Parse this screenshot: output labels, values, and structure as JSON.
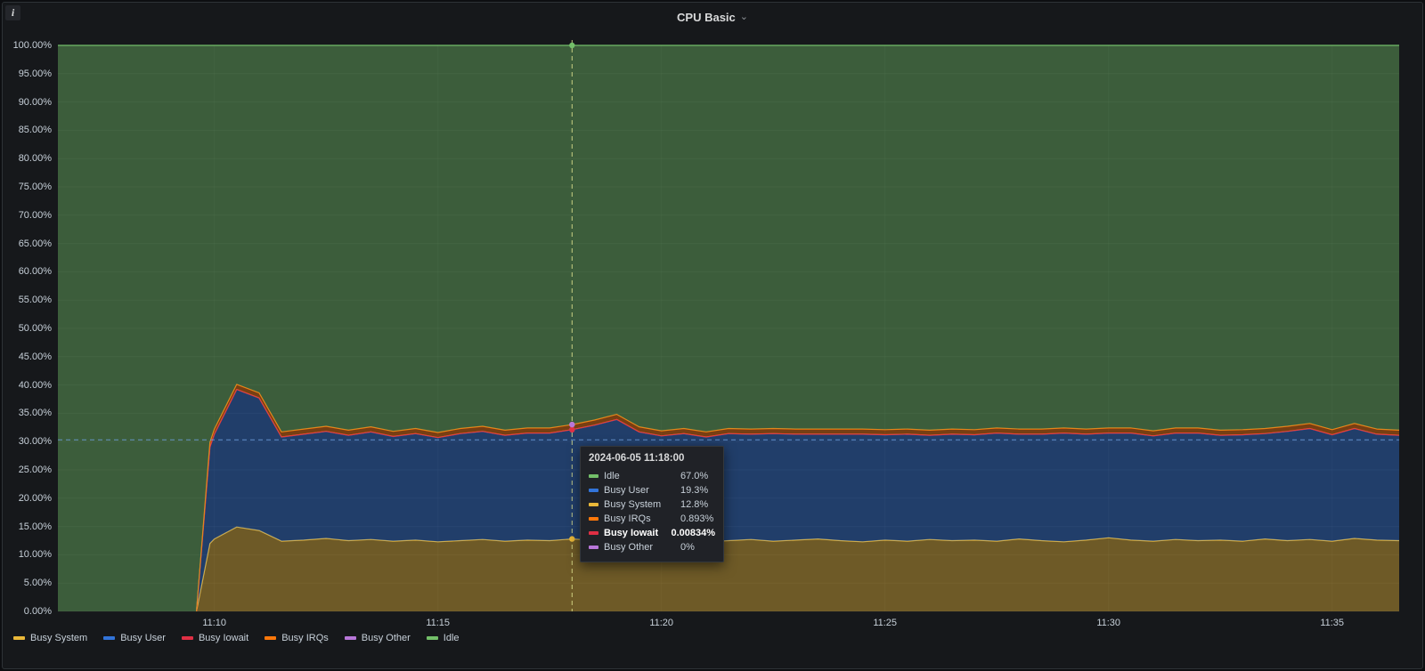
{
  "panel": {
    "title": "CPU Basic"
  },
  "icons": {
    "chevron_down": "⌄",
    "info": "i"
  },
  "legend": {
    "items": [
      {
        "label": "Busy System",
        "color": "#EAB839"
      },
      {
        "label": "Busy User",
        "color": "#3274D9"
      },
      {
        "label": "Busy Iowait",
        "color": "#E02F44"
      },
      {
        "label": "Busy IRQs",
        "color": "#FF780A"
      },
      {
        "label": "Busy Other",
        "color": "#B877D9"
      },
      {
        "label": "Idle",
        "color": "#73BF69"
      }
    ]
  },
  "tooltip": {
    "timestamp": "2024-06-05 11:18:00",
    "rows": [
      {
        "name": "Idle",
        "value": "67.0%",
        "color": "#73BF69",
        "bold": false
      },
      {
        "name": "Busy User",
        "value": "19.3%",
        "color": "#3274D9",
        "bold": false
      },
      {
        "name": "Busy System",
        "value": "12.8%",
        "color": "#EAB839",
        "bold": false
      },
      {
        "name": "Busy IRQs",
        "value": "0.893%",
        "color": "#FF780A",
        "bold": false
      },
      {
        "name": "Busy Iowait",
        "value": "0.00834%",
        "color": "#E02F44",
        "bold": true
      },
      {
        "name": "Busy Other",
        "value": "0%",
        "color": "#B877D9",
        "bold": false
      }
    ]
  },
  "chart_data": {
    "type": "area",
    "stacked": true,
    "unit": "percent",
    "title": "CPU Basic",
    "ylim": [
      0,
      100
    ],
    "y_tick_values": [
      0,
      5,
      10,
      15,
      20,
      25,
      30,
      35,
      40,
      45,
      50,
      55,
      60,
      65,
      70,
      75,
      80,
      85,
      90,
      95,
      100
    ],
    "y_tick_labels": [
      "0.00%",
      "5.00%",
      "10.00%",
      "15.00%",
      "20.00%",
      "25.00%",
      "30.00%",
      "35.00%",
      "40.00%",
      "45.00%",
      "50.00%",
      "55.00%",
      "60.00%",
      "65.00%",
      "70.00%",
      "75.00%",
      "80.00%",
      "85.00%",
      "90.00%",
      "95.00%",
      "100.00%"
    ],
    "x_tick_minutes": [
      10,
      15,
      20,
      25,
      30,
      35
    ],
    "x_tick_labels": [
      "11:10",
      "11:15",
      "11:20",
      "11:25",
      "11:30",
      "11:35"
    ],
    "x_range_minutes": [
      6.5,
      36.5
    ],
    "x_base_hour": "11:00",
    "crosshair": {
      "x_minute": 18,
      "y_percent": 30.3
    },
    "x_minutes": [
      6.5,
      7,
      7.5,
      8,
      8.5,
      9,
      9.5,
      9.6,
      9.9,
      10,
      10.5,
      11,
      11.5,
      12,
      12.5,
      13,
      13.5,
      14,
      14.5,
      15,
      15.5,
      16,
      16.5,
      17,
      17.5,
      18,
      18.5,
      19,
      19.5,
      20,
      20.5,
      21,
      21.5,
      22,
      22.5,
      23,
      23.5,
      24,
      24.5,
      25,
      25.5,
      26,
      26.5,
      27,
      27.5,
      28,
      28.5,
      29,
      29.5,
      30,
      30.5,
      31,
      31.5,
      32,
      32.5,
      33,
      33.5,
      34,
      34.5,
      35,
      35.5,
      36,
      36.5
    ],
    "series": [
      {
        "name": "Busy System",
        "color": "#EAB839",
        "remainder": false,
        "values": [
          0,
          0,
          0,
          0,
          0,
          0,
          0,
          0,
          12.0,
          12.8,
          14.9,
          14.3,
          12.4,
          12.6,
          12.9,
          12.5,
          12.7,
          12.4,
          12.6,
          12.3,
          12.5,
          12.7,
          12.4,
          12.6,
          12.5,
          12.8,
          12.6,
          12.9,
          12.5,
          12.4,
          12.6,
          12.3,
          12.5,
          12.7,
          12.4,
          12.6,
          12.8,
          12.5,
          12.3,
          12.6,
          12.4,
          12.7,
          12.5,
          12.6,
          12.4,
          12.8,
          12.5,
          12.3,
          12.6,
          13.0,
          12.6,
          12.4,
          12.7,
          12.5,
          12.6,
          12.4,
          12.8,
          12.5,
          12.7,
          12.4,
          12.9,
          12.6,
          12.5
        ]
      },
      {
        "name": "Busy User",
        "color": "#3274D9",
        "remainder": false,
        "values": [
          0,
          0,
          0,
          0,
          0,
          0,
          0,
          0,
          17.0,
          18.5,
          24.3,
          23.4,
          18.4,
          18.7,
          18.9,
          18.6,
          19.0,
          18.5,
          18.8,
          18.4,
          18.9,
          19.1,
          18.7,
          18.9,
          19.0,
          19.3,
          20.3,
          21.0,
          19.2,
          18.6,
          18.8,
          18.5,
          18.9,
          18.6,
          19.0,
          18.7,
          18.5,
          18.8,
          19.0,
          18.6,
          18.9,
          18.4,
          18.8,
          18.6,
          19.1,
          18.5,
          18.8,
          19.2,
          18.7,
          18.5,
          18.9,
          18.6,
          18.8,
          19.0,
          18.5,
          18.8,
          18.6,
          19.3,
          19.6,
          18.8,
          19.4,
          18.7,
          18.6
        ]
      },
      {
        "name": "Busy Iowait",
        "color": "#E02F44",
        "remainder": false,
        "values": [
          0,
          0,
          0,
          0,
          0,
          0,
          0,
          0,
          0.01,
          0.01,
          0.01,
          0.01,
          0.01,
          0.01,
          0.01,
          0.01,
          0.01,
          0.01,
          0.01,
          0.01,
          0.01,
          0.01,
          0.01,
          0.01,
          0.01,
          0.00834,
          0.01,
          0.01,
          0.01,
          0.01,
          0.01,
          0.01,
          0.01,
          0.01,
          0.01,
          0.01,
          0.01,
          0.01,
          0.01,
          0.01,
          0.01,
          0.01,
          0.01,
          0.01,
          0.01,
          0.01,
          0.01,
          0.01,
          0.01,
          0.01,
          0.01,
          0.01,
          0.01,
          0.01,
          0.01,
          0.01,
          0.01,
          0.01,
          0.01,
          0.01,
          0.01,
          0.01,
          0.01
        ]
      },
      {
        "name": "Busy IRQs",
        "color": "#FF780A",
        "remainder": false,
        "values": [
          0,
          0,
          0,
          0,
          0,
          0,
          0,
          0,
          0.85,
          0.9,
          0.9,
          0.9,
          0.9,
          0.9,
          0.9,
          0.9,
          0.9,
          0.9,
          0.9,
          0.9,
          0.9,
          0.9,
          0.9,
          0.9,
          0.9,
          0.893,
          0.9,
          0.9,
          0.9,
          0.9,
          0.9,
          0.9,
          0.9,
          0.9,
          0.9,
          0.9,
          0.9,
          0.9,
          0.9,
          0.9,
          0.9,
          0.9,
          0.9,
          0.9,
          0.9,
          0.9,
          0.9,
          0.9,
          0.9,
          0.9,
          0.9,
          0.9,
          0.9,
          0.9,
          0.9,
          0.9,
          0.9,
          0.9,
          0.9,
          0.9,
          0.9,
          0.9,
          0.9
        ]
      },
      {
        "name": "Busy Other",
        "color": "#B877D9",
        "remainder": false,
        "values": [
          0,
          0,
          0,
          0,
          0,
          0,
          0,
          0,
          0,
          0,
          0,
          0,
          0,
          0,
          0,
          0,
          0,
          0,
          0,
          0,
          0,
          0,
          0,
          0,
          0,
          0,
          0,
          0,
          0,
          0,
          0,
          0,
          0,
          0,
          0,
          0,
          0,
          0,
          0,
          0,
          0,
          0,
          0,
          0,
          0,
          0,
          0,
          0,
          0,
          0,
          0,
          0,
          0,
          0,
          0,
          0,
          0,
          0,
          0,
          0,
          0,
          0,
          0
        ]
      },
      {
        "name": "Idle",
        "color": "#73BF69",
        "remainder": true,
        "values": null
      }
    ]
  }
}
